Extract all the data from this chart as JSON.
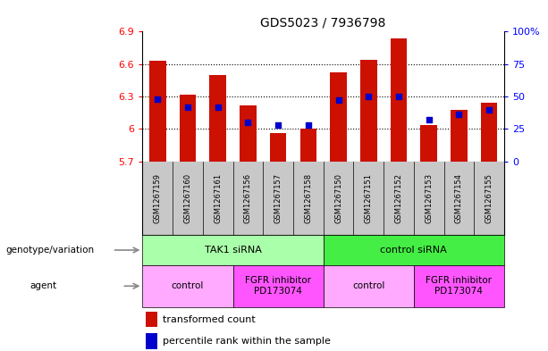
{
  "title": "GDS5023 / 7936798",
  "samples": [
    "GSM1267159",
    "GSM1267160",
    "GSM1267161",
    "GSM1267156",
    "GSM1267157",
    "GSM1267158",
    "GSM1267150",
    "GSM1267151",
    "GSM1267152",
    "GSM1267153",
    "GSM1267154",
    "GSM1267155"
  ],
  "bar_values": [
    6.63,
    6.32,
    6.5,
    6.22,
    5.96,
    6.0,
    6.52,
    6.64,
    6.84,
    6.04,
    6.18,
    6.24
  ],
  "percentile_values": [
    48,
    42,
    42,
    30,
    28,
    28,
    47,
    50,
    50,
    32,
    36,
    40
  ],
  "bar_bottom": 5.7,
  "ylim_left": [
    5.7,
    6.9
  ],
  "ylim_right": [
    0,
    100
  ],
  "yticks_left": [
    5.7,
    6.0,
    6.3,
    6.6,
    6.9
  ],
  "ytick_labels_left": [
    "5.7",
    "6",
    "6.3",
    "6.6",
    "6.9"
  ],
  "yticks_right": [
    0,
    25,
    50,
    75,
    100
  ],
  "ytick_labels_right": [
    "0",
    "25",
    "50",
    "75",
    "100%"
  ],
  "hlines": [
    6.0,
    6.3,
    6.6
  ],
  "bar_color": "#cc1100",
  "dot_color": "#0000cc",
  "tick_area_bg": "#c8c8c8",
  "genotype_groups": [
    {
      "label": "TAK1 siRNA",
      "start": 0,
      "end": 6,
      "color": "#aaffaa"
    },
    {
      "label": "control siRNA",
      "start": 6,
      "end": 12,
      "color": "#44ee44"
    }
  ],
  "agent_groups": [
    {
      "label": "control",
      "start": 0,
      "end": 3,
      "color": "#ffaaff"
    },
    {
      "label": "FGFR inhibitor\nPD173074",
      "start": 3,
      "end": 6,
      "color": "#ff55ff"
    },
    {
      "label": "control",
      "start": 6,
      "end": 9,
      "color": "#ffaaff"
    },
    {
      "label": "FGFR inhibitor\nPD173074",
      "start": 9,
      "end": 12,
      "color": "#ff55ff"
    }
  ],
  "genotype_label": "genotype/variation",
  "agent_label": "agent",
  "legend_bar_label": "transformed count",
  "legend_dot_label": "percentile rank within the sample",
  "bar_width": 0.55
}
